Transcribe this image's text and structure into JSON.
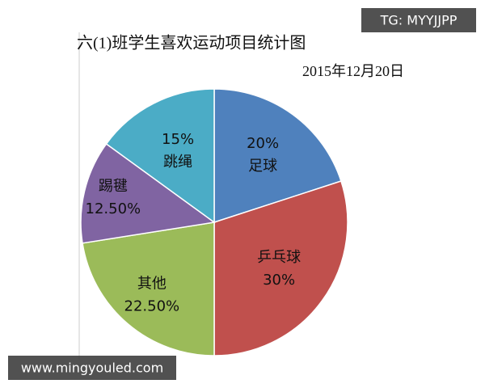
{
  "chart_data": {
    "type": "pie",
    "title": "六(1)班学生喜欢运动项目统计图",
    "subtitle": "2015年12月20日",
    "categories": [
      "足球",
      "乒乓球",
      "其他",
      "踢毽",
      "跳绳"
    ],
    "values": [
      20,
      30,
      22.5,
      12.5,
      15
    ],
    "value_labels": [
      "20%",
      "30%",
      "22.50%",
      "12.50%",
      "15%"
    ],
    "colors": [
      "#4f81bd",
      "#c0504d",
      "#9bbb59",
      "#8064a2",
      "#4bacc6"
    ]
  },
  "watermarks": {
    "top": "TG: MYYJJPP",
    "bottom": "www.mingyouled.com"
  }
}
